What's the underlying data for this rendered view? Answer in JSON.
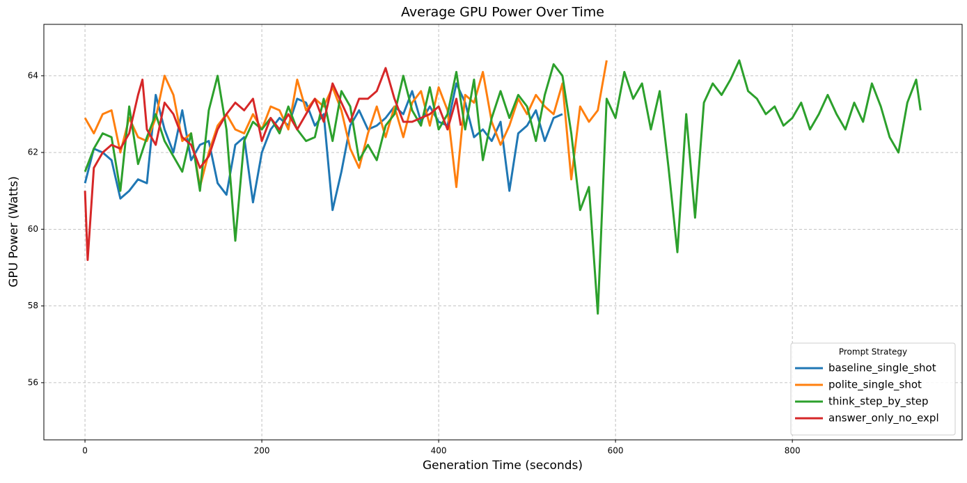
{
  "chart_data": {
    "type": "line",
    "title": "Average GPU Power Over Time",
    "xlabel": "Generation Time (seconds)",
    "ylabel": "GPU Power (Watts)",
    "legend_title": "Prompt Strategy",
    "legend": "lower right",
    "grid": true,
    "xlim": [
      -46.5,
      992
    ],
    "ylim": [
      54.51,
      65.34
    ],
    "xticks": [
      0,
      200,
      400,
      600,
      800
    ],
    "yticks": [
      56,
      58,
      60,
      62,
      64
    ],
    "series": [
      {
        "name": "baseline_single_shot",
        "color": "#1f77b4",
        "x": [
          0,
          10,
          20,
          30,
          40,
          50,
          60,
          70,
          80,
          90,
          100,
          110,
          120,
          130,
          140,
          150,
          160,
          170,
          180,
          190,
          200,
          210,
          220,
          230,
          240,
          250,
          260,
          270,
          280,
          290,
          300,
          310,
          320,
          330,
          340,
          350,
          360,
          370,
          380,
          390,
          400,
          410,
          420,
          430,
          440,
          450,
          460,
          470,
          480,
          490,
          500,
          510,
          520,
          530,
          540
        ],
        "values": [
          61.2,
          62.1,
          62.0,
          61.8,
          60.8,
          61.0,
          61.3,
          61.2,
          63.5,
          62.6,
          62.0,
          63.1,
          61.8,
          62.2,
          62.3,
          61.2,
          60.9,
          62.2,
          62.4,
          60.7,
          62.0,
          62.6,
          62.9,
          62.7,
          63.4,
          63.3,
          62.7,
          63.0,
          60.5,
          61.5,
          62.7,
          63.1,
          62.6,
          62.7,
          62.9,
          63.2,
          63.0,
          63.6,
          62.8,
          63.2,
          62.8,
          62.7,
          63.8,
          63.3,
          62.4,
          62.6,
          62.3,
          62.8,
          61.0,
          62.5,
          62.7,
          63.1,
          62.3,
          62.9,
          63.0
        ]
      },
      {
        "name": "polite_single_shot",
        "color": "#ff7f0e",
        "x": [
          0,
          10,
          20,
          30,
          40,
          50,
          60,
          70,
          80,
          90,
          100,
          110,
          120,
          130,
          140,
          150,
          160,
          170,
          180,
          190,
          200,
          210,
          220,
          230,
          240,
          250,
          260,
          270,
          280,
          290,
          300,
          310,
          320,
          330,
          340,
          350,
          360,
          370,
          380,
          390,
          400,
          410,
          420,
          430,
          440,
          450,
          460,
          470,
          480,
          490,
          500,
          510,
          520,
          530,
          540,
          550,
          560,
          570,
          580,
          590
        ],
        "values": [
          62.9,
          62.5,
          63.0,
          63.1,
          62.0,
          62.9,
          62.4,
          62.3,
          62.9,
          64.0,
          63.5,
          62.3,
          62.5,
          61.1,
          62.0,
          62.7,
          63.0,
          62.6,
          62.5,
          63.0,
          62.6,
          63.2,
          63.1,
          62.6,
          63.9,
          63.1,
          63.4,
          63.2,
          63.7,
          63.1,
          62.1,
          61.6,
          62.5,
          63.2,
          62.4,
          63.2,
          62.4,
          63.3,
          63.6,
          62.7,
          63.7,
          63.1,
          61.1,
          63.5,
          63.3,
          64.1,
          62.8,
          62.2,
          62.7,
          63.4,
          63.0,
          63.5,
          63.2,
          63.0,
          63.8,
          61.3,
          63.2,
          62.8,
          63.1,
          64.4
        ]
      },
      {
        "name": "think_step_by_step",
        "color": "#2ca02c",
        "x": [
          0,
          10,
          20,
          30,
          40,
          50,
          60,
          70,
          80,
          90,
          100,
          110,
          120,
          130,
          140,
          150,
          160,
          170,
          180,
          190,
          200,
          210,
          220,
          230,
          240,
          250,
          260,
          270,
          280,
          290,
          300,
          310,
          320,
          330,
          340,
          350,
          360,
          370,
          380,
          390,
          400,
          410,
          420,
          430,
          440,
          450,
          460,
          470,
          480,
          490,
          500,
          510,
          520,
          530,
          540,
          550,
          560,
          570,
          580,
          590,
          600,
          610,
          620,
          630,
          640,
          650,
          660,
          670,
          680,
          690,
          700,
          710,
          720,
          730,
          740,
          750,
          760,
          770,
          780,
          790,
          800,
          810,
          820,
          830,
          840,
          850,
          860,
          870,
          880,
          890,
          900,
          910,
          920,
          930,
          940,
          945
        ],
        "values": [
          61.5,
          62.1,
          62.5,
          62.4,
          61.0,
          63.2,
          61.7,
          62.4,
          63.0,
          62.3,
          61.9,
          61.5,
          62.5,
          61.0,
          63.1,
          64.0,
          62.6,
          59.7,
          62.3,
          62.8,
          62.6,
          62.9,
          62.5,
          63.2,
          62.6,
          62.3,
          62.4,
          63.4,
          62.3,
          63.6,
          63.2,
          61.8,
          62.2,
          61.8,
          62.7,
          63.0,
          64.0,
          63.1,
          62.7,
          63.7,
          62.6,
          63.0,
          64.1,
          62.6,
          63.9,
          61.8,
          62.9,
          63.6,
          62.9,
          63.5,
          63.2,
          62.3,
          63.5,
          64.3,
          64.0,
          62.5,
          60.5,
          61.1,
          57.8,
          63.4,
          62.9,
          64.1,
          63.4,
          63.8,
          62.6,
          63.6,
          61.6,
          59.4,
          63.0,
          60.3,
          63.3,
          63.8,
          63.5,
          63.9,
          64.4,
          63.6,
          63.4,
          63.0,
          63.2,
          62.7,
          62.9,
          63.3,
          62.6,
          63.0,
          63.5,
          63.0,
          62.6,
          63.3,
          62.8,
          63.8,
          63.2,
          62.4,
          62.0,
          63.3,
          63.9,
          63.1
        ]
      },
      {
        "name": "answer_only_no_expl",
        "color": "#d62728",
        "x": [
          0,
          3,
          10,
          20,
          30,
          40,
          50,
          60,
          65,
          70,
          80,
          90,
          100,
          110,
          120,
          130,
          140,
          150,
          160,
          170,
          180,
          190,
          200,
          210,
          220,
          230,
          240,
          250,
          260,
          270,
          280,
          290,
          300,
          310,
          320,
          330,
          340,
          350,
          360,
          370,
          380,
          390,
          400,
          410,
          420,
          425
        ],
        "values": [
          61.0,
          59.2,
          61.6,
          62.0,
          62.2,
          62.1,
          62.5,
          63.5,
          63.9,
          62.6,
          62.2,
          63.3,
          63.0,
          62.4,
          62.2,
          61.6,
          61.9,
          62.6,
          63.0,
          63.3,
          63.1,
          63.4,
          62.3,
          62.9,
          62.6,
          63.0,
          62.6,
          63.0,
          63.4,
          62.8,
          63.8,
          63.3,
          62.8,
          63.4,
          63.4,
          63.6,
          64.2,
          63.4,
          62.8,
          62.8,
          62.9,
          63.0,
          63.2,
          62.6,
          63.4,
          62.7
        ]
      }
    ]
  }
}
